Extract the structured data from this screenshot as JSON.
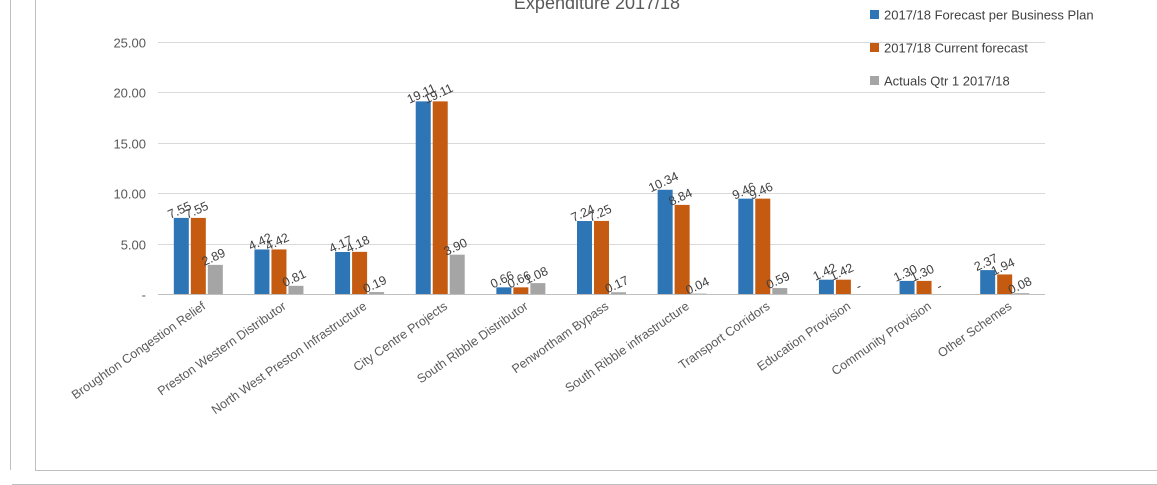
{
  "chart_data": {
    "type": "bar",
    "title": "Expenditure 2017/18",
    "xlabel": "",
    "ylabel": "",
    "ylim": [
      0,
      25
    ],
    "yticks": [
      "-",
      "5.00",
      "10.00",
      "15.00",
      "20.00",
      "25.00"
    ],
    "grid": true,
    "legend_position": "top-right",
    "categories": [
      "Broughton Congestion Relief",
      "Preston Western Distributor",
      "North West Preston Infrastructure",
      "City Centre Projects",
      "South Ribble Distributor",
      "Penwortham Bypass",
      "South Ribble infrastructure",
      "Transport Corridors",
      "Education Provision",
      "Community Provision",
      "Other Schemes"
    ],
    "series": [
      {
        "name": "2017/18 Forecast per Business Plan",
        "color": "#2e75b6",
        "values": [
          7.55,
          4.42,
          4.17,
          19.11,
          0.66,
          7.24,
          10.34,
          9.46,
          1.42,
          1.3,
          2.37
        ],
        "labels": [
          "7.55",
          "4.42",
          "4.17",
          "19.11",
          "0.66",
          "7.24",
          "10.34",
          "9.46",
          "1.42",
          "1.30",
          "2.37"
        ]
      },
      {
        "name": "2017/18 Current forecast",
        "color": "#c55a11",
        "values": [
          7.55,
          4.42,
          4.18,
          19.11,
          0.66,
          7.25,
          8.84,
          9.46,
          1.42,
          1.3,
          1.94
        ],
        "labels": [
          "7.55",
          "4.42",
          "4.18",
          "19.11",
          "0.66",
          "7.25",
          "8.84",
          "9.46",
          "1.42",
          "1.30",
          "1.94"
        ]
      },
      {
        "name": "Actuals Qtr 1 2017/18",
        "color": "#a5a5a5",
        "values": [
          2.89,
          0.81,
          0.19,
          3.9,
          1.08,
          0.17,
          0.04,
          0.59,
          0,
          0,
          0.08
        ],
        "labels": [
          "2.89",
          "0.81",
          "0.19",
          "3.90",
          "1.08",
          "0.17",
          "0.04",
          "0.59",
          "-",
          "-",
          "0.08"
        ]
      }
    ]
  }
}
